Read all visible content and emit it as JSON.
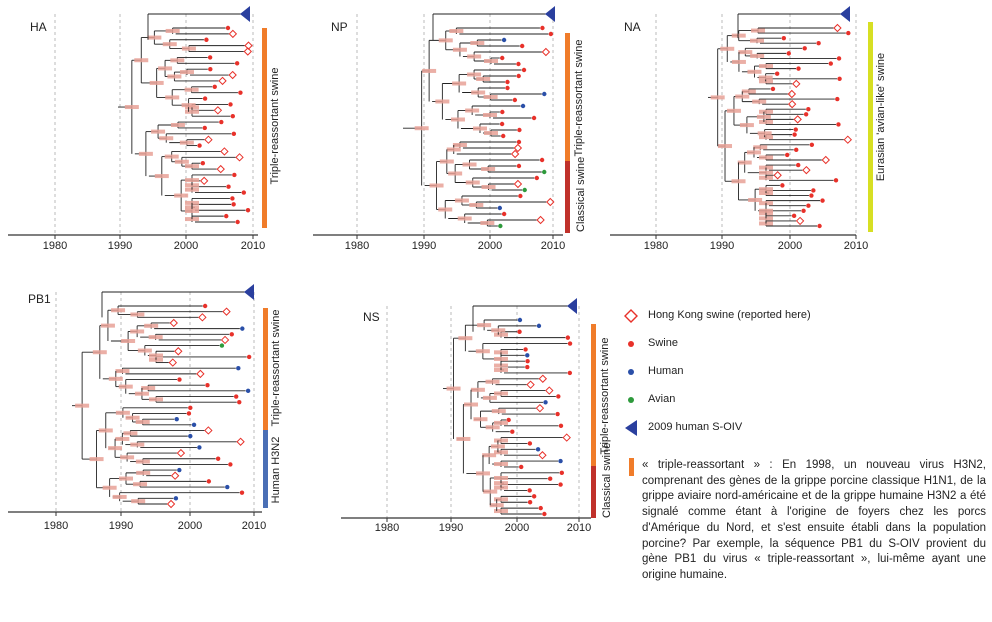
{
  "panels": [
    {
      "id": "HA",
      "label": "HA",
      "ticks": [
        "1980",
        "1990",
        "2000",
        "2010"
      ],
      "lineages": [
        {
          "label": "Triple-reassortant swine",
          "color": "#f07c2a"
        }
      ]
    },
    {
      "id": "NP",
      "label": "NP",
      "ticks": [
        "1980",
        "1990",
        "2000",
        "2010"
      ],
      "lineages": [
        {
          "label": "Triple-reassortant swine",
          "color": "#f07c2a"
        },
        {
          "label": "Classical swine",
          "color": "#c0312b"
        }
      ]
    },
    {
      "id": "NA",
      "label": "NA",
      "ticks": [
        "1980",
        "1990",
        "2000",
        "2010"
      ],
      "lineages": [
        {
          "label": "Eurasian 'avian-like' swine",
          "color": "#d7df23"
        }
      ]
    },
    {
      "id": "PB1",
      "label": "PB1",
      "ticks": [
        "1980",
        "1990",
        "2000",
        "2010"
      ],
      "lineages": [
        {
          "label": "Triple-reassortant swine",
          "color": "#f07c2a"
        },
        {
          "label": "Human H3N2",
          "color": "#4a6fb5"
        }
      ]
    },
    {
      "id": "NS",
      "label": "NS",
      "ticks": [
        "1980",
        "1990",
        "2000",
        "2010"
      ],
      "lineages": [
        {
          "label": "Triple-reassortant swine",
          "color": "#f07c2a"
        },
        {
          "label": "Classical swine",
          "color": "#c0312b"
        }
      ]
    }
  ],
  "legend": [
    {
      "symbol": "diamond",
      "color": "#e8312a",
      "label": "Hong Kong swine (reported here)"
    },
    {
      "symbol": "dot",
      "color": "#e8312a",
      "label": "Swine"
    },
    {
      "symbol": "dot",
      "color": "#2a4fa8",
      "label": "Human"
    },
    {
      "symbol": "dot",
      "color": "#2e9a3c",
      "label": "Avian"
    },
    {
      "symbol": "triangle",
      "color": "#2a3f9e",
      "label": "2009 human S-OIV"
    }
  ],
  "colors": {
    "axis": "#333333",
    "branch": "#222222",
    "node_bar": "#e8a196",
    "grid": "#bbbbbb",
    "hk": "#e8312a",
    "swine": "#e8312a",
    "human": "#2a4fa8",
    "avian": "#2e9a3c",
    "soiv": "#2a3f9e"
  },
  "note": "« triple-reassortant » : En 1998, un nouveau virus H3N2, comprenant des gènes de la grippe porcine classique H1N1, de la grippe aviaire nord-américaine et de la grippe humaine H3N2 a été signalé comme étant à l'origine de foyers chez les porcs d'Amérique du Nord, et s'est ensuite établi dans la population porcine? Par exemple, la séquence PB1 du S-OIV provient du gène PB1 du virus « triple-reassortant », lui-même ayant une origine humaine."
}
